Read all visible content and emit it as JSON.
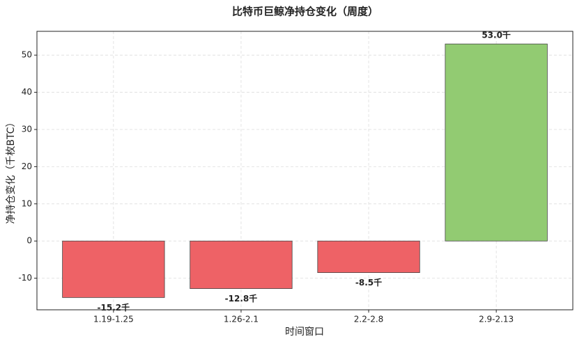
{
  "chart_data": {
    "type": "bar",
    "title": "比特币巨鲸净持仓变化（周度）",
    "xlabel": "时间窗口",
    "ylabel": "净持仓变化（千枚BTC）",
    "categories": [
      "1.19-1.25",
      "1.26-2.1",
      "2.2-2.8",
      "2.9-2.13"
    ],
    "values": [
      -15.2,
      -12.8,
      -8.5,
      53.0
    ],
    "value_labels": [
      "-15.2千",
      "-12.8千",
      "-8.5千",
      "53.0千"
    ],
    "colors": [
      "#ee6266",
      "#ee6266",
      "#ee6266",
      "#92cb72"
    ],
    "ylim": [
      -18.5,
      56.4
    ],
    "yticks": [
      -10,
      0,
      10,
      20,
      30,
      40,
      50
    ],
    "grid": true
  }
}
